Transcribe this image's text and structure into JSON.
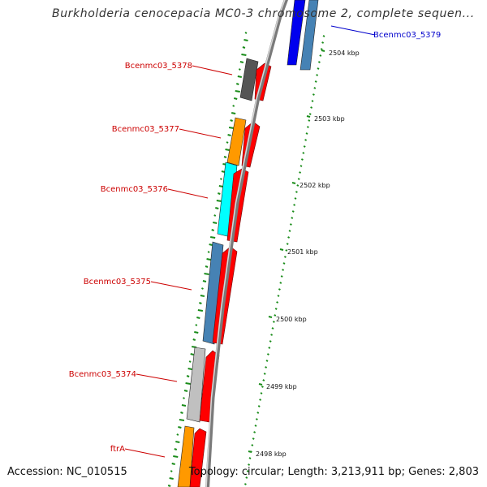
{
  "title": "Burkholderia cenocepacia MC0-3 chromosome 2, complete sequen...",
  "footer": {
    "accession": "Accession: NC_010515",
    "topology": "Topology: circular; Length: 3,213,911 bp; Genes: 2,803"
  },
  "colors": {
    "backbone": "#8c8c8c",
    "gc_dots": "#1a8c1a",
    "forward_cds": "#ff0000",
    "highlight_label": "#0000cc",
    "label": "#cc0000"
  },
  "scale_ticks": [
    "2504 kbp",
    "2503 kbp",
    "2502 kbp",
    "2501 kbp",
    "2500 kbp",
    "2499 kbp",
    "2498 kbp"
  ],
  "genes": [
    {
      "name": "Bcenmc03_5379",
      "color": "#0000ee",
      "color2": "#4682b4"
    },
    {
      "name": "Bcenmc03_5378",
      "color": "#555555"
    },
    {
      "name": "Bcenmc03_5377",
      "color": "#ff9900"
    },
    {
      "name": "Bcenmc03_5376",
      "color": "#00ffff"
    },
    {
      "name": "Bcenmc03_5375",
      "color": "#4682b4"
    },
    {
      "name": "Bcenmc03_5374",
      "color": "#c0c0c0"
    },
    {
      "name": "ftrA",
      "color": "#ff9900"
    }
  ]
}
